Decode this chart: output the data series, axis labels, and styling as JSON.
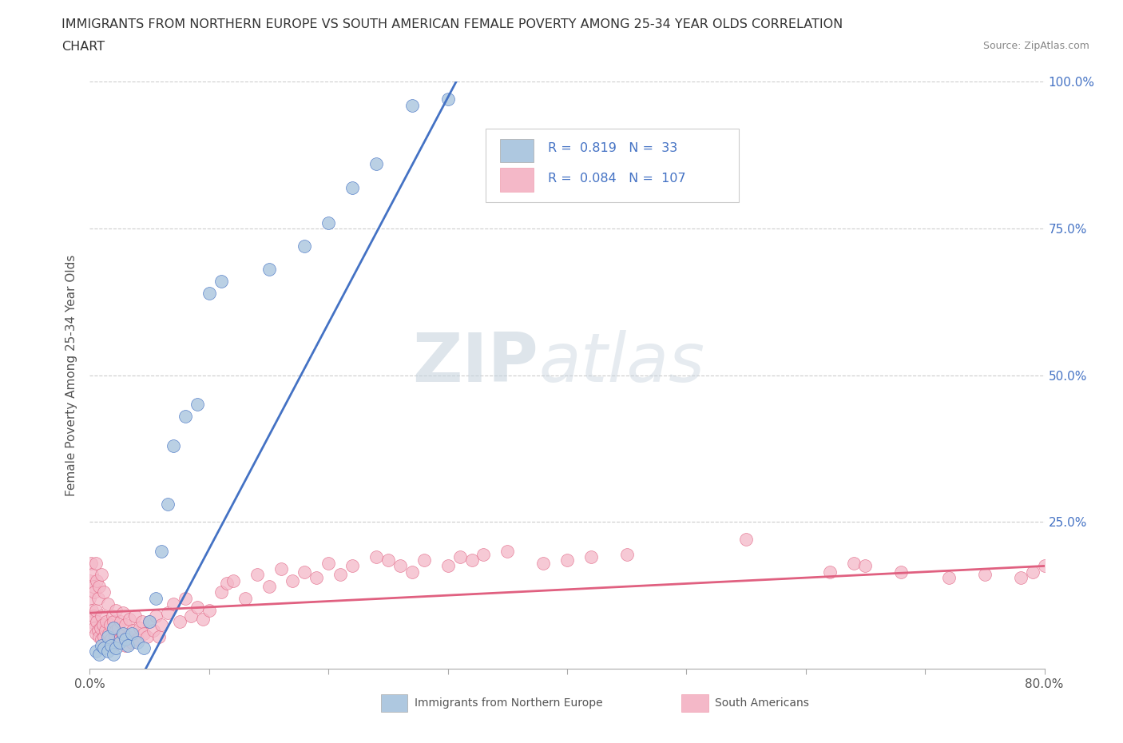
{
  "title_line1": "IMMIGRANTS FROM NORTHERN EUROPE VS SOUTH AMERICAN FEMALE POVERTY AMONG 25-34 YEAR OLDS CORRELATION",
  "title_line2": "CHART",
  "source": "Source: ZipAtlas.com",
  "ylabel": "Female Poverty Among 25-34 Year Olds",
  "xlim": [
    0.0,
    0.8
  ],
  "ylim": [
    0.0,
    1.0
  ],
  "color_blue": "#aec8e0",
  "color_blue_line": "#4472c4",
  "color_pink": "#f4b8c8",
  "color_pink_line": "#e06080",
  "watermark_zip": "ZIP",
  "watermark_atlas": "atlas",
  "blue_x": [
    0.005,
    0.008,
    0.01,
    0.012,
    0.015,
    0.015,
    0.018,
    0.02,
    0.02,
    0.022,
    0.025,
    0.028,
    0.03,
    0.032,
    0.035,
    0.04,
    0.045,
    0.05,
    0.055,
    0.06,
    0.065,
    0.07,
    0.08,
    0.09,
    0.1,
    0.11,
    0.15,
    0.18,
    0.2,
    0.22,
    0.24,
    0.27,
    0.3
  ],
  "blue_y": [
    0.03,
    0.025,
    0.04,
    0.035,
    0.03,
    0.055,
    0.04,
    0.025,
    0.07,
    0.035,
    0.045,
    0.06,
    0.05,
    0.04,
    0.06,
    0.045,
    0.035,
    0.08,
    0.12,
    0.2,
    0.28,
    0.38,
    0.43,
    0.45,
    0.64,
    0.66,
    0.68,
    0.72,
    0.76,
    0.82,
    0.86,
    0.96,
    0.97
  ],
  "pink_x": [
    0.0,
    0.0,
    0.001,
    0.001,
    0.002,
    0.002,
    0.003,
    0.003,
    0.004,
    0.004,
    0.005,
    0.005,
    0.005,
    0.006,
    0.006,
    0.007,
    0.007,
    0.008,
    0.008,
    0.009,
    0.01,
    0.01,
    0.01,
    0.011,
    0.012,
    0.012,
    0.013,
    0.014,
    0.015,
    0.015,
    0.016,
    0.017,
    0.018,
    0.019,
    0.02,
    0.02,
    0.021,
    0.022,
    0.022,
    0.023,
    0.024,
    0.025,
    0.026,
    0.027,
    0.028,
    0.03,
    0.03,
    0.032,
    0.033,
    0.035,
    0.036,
    0.038,
    0.04,
    0.042,
    0.044,
    0.045,
    0.048,
    0.05,
    0.053,
    0.055,
    0.058,
    0.06,
    0.065,
    0.07,
    0.075,
    0.08,
    0.085,
    0.09,
    0.095,
    0.1,
    0.11,
    0.115,
    0.12,
    0.13,
    0.14,
    0.15,
    0.16,
    0.17,
    0.18,
    0.19,
    0.2,
    0.21,
    0.22,
    0.24,
    0.25,
    0.26,
    0.27,
    0.28,
    0.3,
    0.31,
    0.32,
    0.33,
    0.35,
    0.38,
    0.4,
    0.42,
    0.45,
    0.55,
    0.62,
    0.64,
    0.65,
    0.68,
    0.72,
    0.75,
    0.78,
    0.79,
    0.8
  ],
  "pink_y": [
    0.12,
    0.15,
    0.08,
    0.18,
    0.1,
    0.16,
    0.09,
    0.14,
    0.07,
    0.13,
    0.06,
    0.1,
    0.18,
    0.08,
    0.15,
    0.065,
    0.12,
    0.055,
    0.14,
    0.07,
    0.05,
    0.09,
    0.16,
    0.075,
    0.055,
    0.13,
    0.065,
    0.08,
    0.045,
    0.11,
    0.06,
    0.075,
    0.05,
    0.09,
    0.04,
    0.08,
    0.055,
    0.065,
    0.1,
    0.045,
    0.07,
    0.05,
    0.08,
    0.06,
    0.095,
    0.04,
    0.075,
    0.055,
    0.085,
    0.045,
    0.065,
    0.09,
    0.05,
    0.07,
    0.08,
    0.06,
    0.055,
    0.08,
    0.065,
    0.09,
    0.055,
    0.075,
    0.095,
    0.11,
    0.08,
    0.12,
    0.09,
    0.105,
    0.085,
    0.1,
    0.13,
    0.145,
    0.15,
    0.12,
    0.16,
    0.14,
    0.17,
    0.15,
    0.165,
    0.155,
    0.18,
    0.16,
    0.175,
    0.19,
    0.185,
    0.175,
    0.165,
    0.185,
    0.175,
    0.19,
    0.185,
    0.195,
    0.2,
    0.18,
    0.185,
    0.19,
    0.195,
    0.22,
    0.165,
    0.18,
    0.175,
    0.165,
    0.155,
    0.16,
    0.155,
    0.165,
    0.175
  ],
  "blue_line_x": [
    0.0,
    0.32
  ],
  "blue_line_y": [
    -0.18,
    1.05
  ],
  "pink_line_x": [
    0.0,
    0.8
  ],
  "pink_line_y": [
    0.095,
    0.175
  ]
}
